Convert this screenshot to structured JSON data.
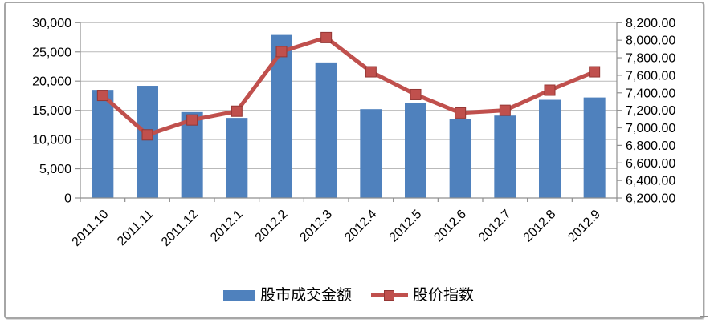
{
  "chart_data": {
    "type": "combo-bar-line",
    "categories": [
      "2011.10",
      "2011.11",
      "2011.12",
      "2012.1",
      "2012.2",
      "2012.3",
      "2012.4",
      "2012.5",
      "2012.6",
      "2012.7",
      "2012.8",
      "2012.9"
    ],
    "series": [
      {
        "name": "股市成交金额",
        "type": "bar",
        "axis": "left",
        "color": "#4f81bd",
        "values": [
          18500,
          19200,
          14700,
          13700,
          27900,
          23200,
          15200,
          16200,
          13500,
          14100,
          16800,
          17200
        ]
      },
      {
        "name": "股价指数",
        "type": "line",
        "axis": "right",
        "color": "#c0504d",
        "marker": "square",
        "marker_border_color": "#943634",
        "values": [
          7370,
          6920,
          7090,
          7190,
          7870,
          8030,
          7640,
          7380,
          7170,
          7200,
          7430,
          7640
        ]
      }
    ],
    "left_axis": {
      "min": 0,
      "max": 30000,
      "step": 5000,
      "tick_labels": [
        "0",
        "5,000",
        "10,000",
        "15,000",
        "20,000",
        "25,000",
        "30,000"
      ]
    },
    "right_axis": {
      "min": 6200,
      "max": 8200,
      "step": 200,
      "tick_labels": [
        "6,200.00",
        "6,400.00",
        "6,600.00",
        "6,800.00",
        "7,000.00",
        "7,200.00",
        "7,400.00",
        "7,600.00",
        "7,800.00",
        "8,000.00",
        "8,200.00"
      ]
    },
    "grid": true,
    "legend_position": "bottom",
    "x_label_rotation_deg": -45
  },
  "colors": {
    "bar_fill": "#4f81bd",
    "line_stroke": "#c0504d",
    "marker_border": "#943634",
    "gridline": "#b9b9b9",
    "axis_line": "#8f8f8f",
    "tick_text": "#000000",
    "frame_border": "#a6a6a6",
    "background": "#ffffff"
  }
}
